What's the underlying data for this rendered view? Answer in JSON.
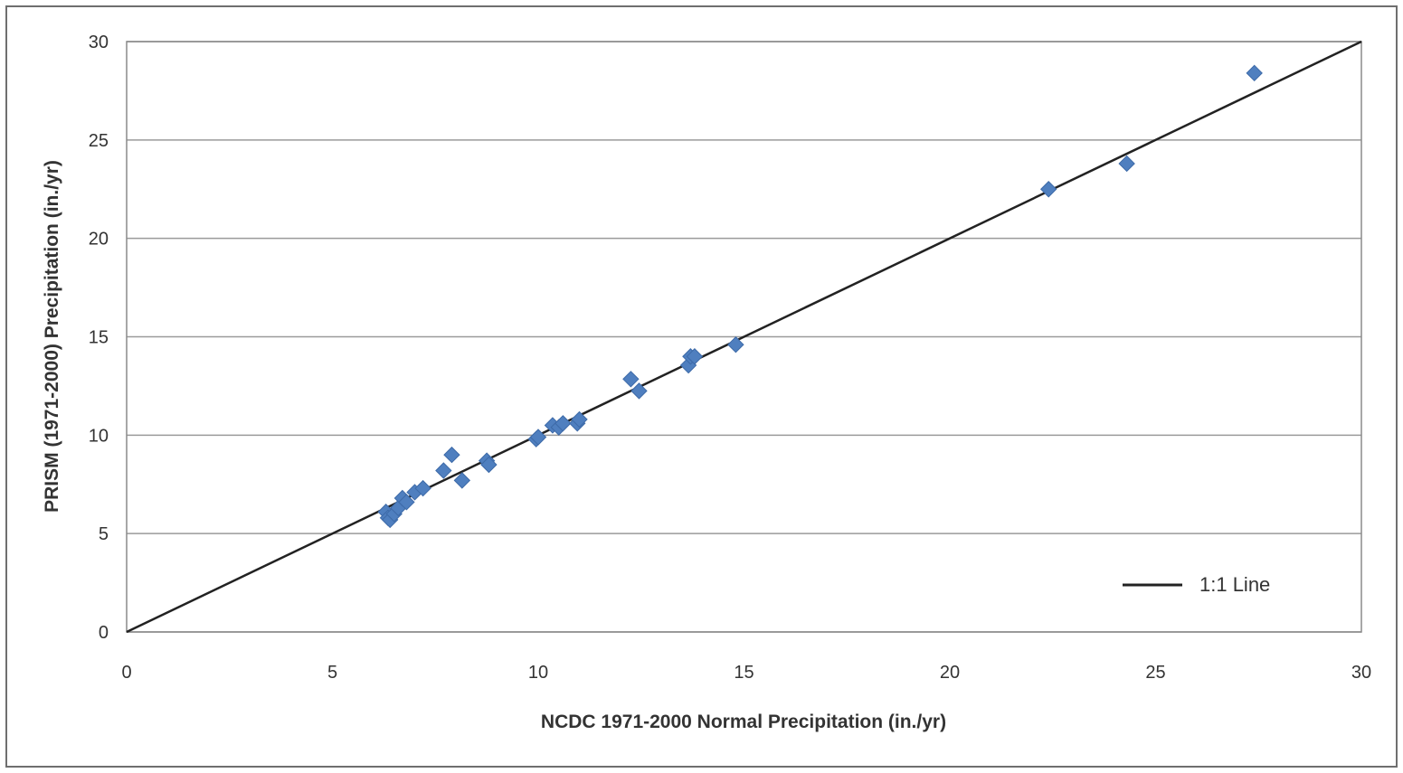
{
  "chart_data": {
    "type": "scatter",
    "title": "",
    "xlabel": "NCDC 1971-2000 Normal Precipitation (in./yr)",
    "ylabel": "PRISM (1971-2000) Precipitation (in./yr)",
    "xlim": [
      0,
      30
    ],
    "ylim": [
      0,
      30
    ],
    "xticks": [
      "0",
      "5",
      "10",
      "15",
      "20",
      "25",
      "30"
    ],
    "yticks": [
      "0",
      "5",
      "10",
      "15",
      "20",
      "25",
      "30"
    ],
    "grid": "horizontal",
    "legend": {
      "position": "bottom-right",
      "entries": [
        "1:1 Line"
      ]
    },
    "colors": {
      "points": "#4f7fbf",
      "line": "#222222",
      "grid": "#9a9a9a"
    },
    "series": [
      {
        "kind": "scatter",
        "marker": "diamond",
        "points": [
          [
            6.3,
            6.1
          ],
          [
            6.35,
            5.8
          ],
          [
            6.4,
            5.7
          ],
          [
            6.5,
            6.0
          ],
          [
            6.6,
            6.3
          ],
          [
            6.7,
            6.8
          ],
          [
            6.8,
            6.6
          ],
          [
            7.0,
            7.1
          ],
          [
            7.2,
            7.3
          ],
          [
            7.7,
            8.2
          ],
          [
            7.9,
            9.0
          ],
          [
            8.15,
            7.7
          ],
          [
            8.75,
            8.7
          ],
          [
            8.8,
            8.5
          ],
          [
            9.95,
            9.8
          ],
          [
            10.0,
            9.9
          ],
          [
            10.35,
            10.5
          ],
          [
            10.5,
            10.4
          ],
          [
            10.6,
            10.6
          ],
          [
            10.95,
            10.6
          ],
          [
            11.0,
            10.8
          ],
          [
            12.25,
            12.85
          ],
          [
            12.45,
            12.25
          ],
          [
            13.65,
            13.55
          ],
          [
            13.7,
            14.0
          ],
          [
            13.8,
            14.0
          ],
          [
            14.8,
            14.6
          ],
          [
            22.4,
            22.5
          ],
          [
            24.3,
            23.8
          ],
          [
            27.4,
            28.4
          ]
        ]
      },
      {
        "name": "1:1 Line",
        "kind": "line",
        "points": [
          [
            0,
            0
          ],
          [
            30,
            30
          ]
        ]
      }
    ]
  }
}
